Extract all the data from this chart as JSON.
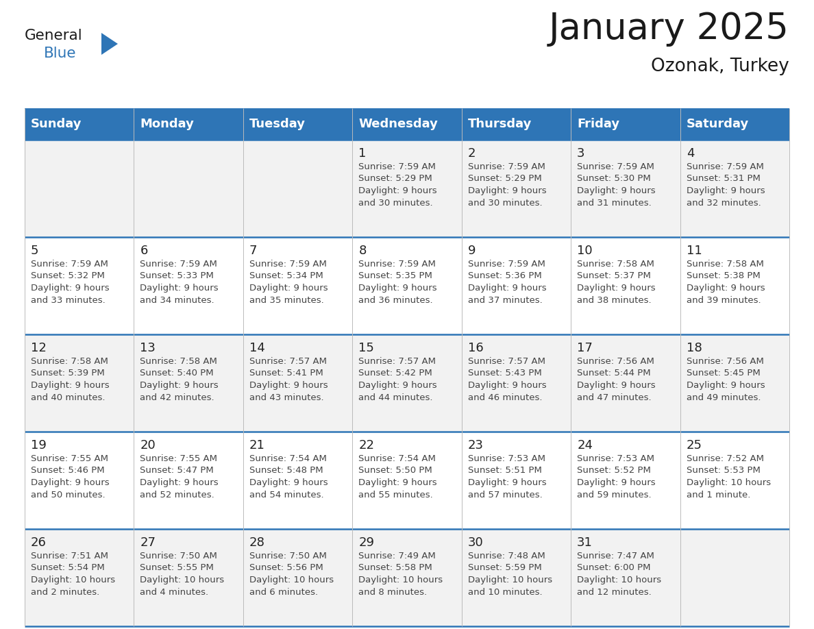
{
  "title": "January 2025",
  "subtitle": "Ozonak, Turkey",
  "days_of_week": [
    "Sunday",
    "Monday",
    "Tuesday",
    "Wednesday",
    "Thursday",
    "Friday",
    "Saturday"
  ],
  "header_bg": "#2E75B6",
  "header_text": "#FFFFFF",
  "row_bg_light": "#F2F2F2",
  "row_bg_white": "#FFFFFF",
  "cell_border_color": "#2E75B6",
  "thin_border_color": "#BBBBBB",
  "day_num_color": "#222222",
  "info_text_color": "#444444",
  "calendar_data": [
    [
      {
        "day": "",
        "sunrise": "",
        "sunset": "",
        "daylight": ""
      },
      {
        "day": "",
        "sunrise": "",
        "sunset": "",
        "daylight": ""
      },
      {
        "day": "",
        "sunrise": "",
        "sunset": "",
        "daylight": ""
      },
      {
        "day": "1",
        "sunrise": "7:59 AM",
        "sunset": "5:29 PM",
        "daylight": "9 hours\nand 30 minutes."
      },
      {
        "day": "2",
        "sunrise": "7:59 AM",
        "sunset": "5:29 PM",
        "daylight": "9 hours\nand 30 minutes."
      },
      {
        "day": "3",
        "sunrise": "7:59 AM",
        "sunset": "5:30 PM",
        "daylight": "9 hours\nand 31 minutes."
      },
      {
        "day": "4",
        "sunrise": "7:59 AM",
        "sunset": "5:31 PM",
        "daylight": "9 hours\nand 32 minutes."
      }
    ],
    [
      {
        "day": "5",
        "sunrise": "7:59 AM",
        "sunset": "5:32 PM",
        "daylight": "9 hours\nand 33 minutes."
      },
      {
        "day": "6",
        "sunrise": "7:59 AM",
        "sunset": "5:33 PM",
        "daylight": "9 hours\nand 34 minutes."
      },
      {
        "day": "7",
        "sunrise": "7:59 AM",
        "sunset": "5:34 PM",
        "daylight": "9 hours\nand 35 minutes."
      },
      {
        "day": "8",
        "sunrise": "7:59 AM",
        "sunset": "5:35 PM",
        "daylight": "9 hours\nand 36 minutes."
      },
      {
        "day": "9",
        "sunrise": "7:59 AM",
        "sunset": "5:36 PM",
        "daylight": "9 hours\nand 37 minutes."
      },
      {
        "day": "10",
        "sunrise": "7:58 AM",
        "sunset": "5:37 PM",
        "daylight": "9 hours\nand 38 minutes."
      },
      {
        "day": "11",
        "sunrise": "7:58 AM",
        "sunset": "5:38 PM",
        "daylight": "9 hours\nand 39 minutes."
      }
    ],
    [
      {
        "day": "12",
        "sunrise": "7:58 AM",
        "sunset": "5:39 PM",
        "daylight": "9 hours\nand 40 minutes."
      },
      {
        "day": "13",
        "sunrise": "7:58 AM",
        "sunset": "5:40 PM",
        "daylight": "9 hours\nand 42 minutes."
      },
      {
        "day": "14",
        "sunrise": "7:57 AM",
        "sunset": "5:41 PM",
        "daylight": "9 hours\nand 43 minutes."
      },
      {
        "day": "15",
        "sunrise": "7:57 AM",
        "sunset": "5:42 PM",
        "daylight": "9 hours\nand 44 minutes."
      },
      {
        "day": "16",
        "sunrise": "7:57 AM",
        "sunset": "5:43 PM",
        "daylight": "9 hours\nand 46 minutes."
      },
      {
        "day": "17",
        "sunrise": "7:56 AM",
        "sunset": "5:44 PM",
        "daylight": "9 hours\nand 47 minutes."
      },
      {
        "day": "18",
        "sunrise": "7:56 AM",
        "sunset": "5:45 PM",
        "daylight": "9 hours\nand 49 minutes."
      }
    ],
    [
      {
        "day": "19",
        "sunrise": "7:55 AM",
        "sunset": "5:46 PM",
        "daylight": "9 hours\nand 50 minutes."
      },
      {
        "day": "20",
        "sunrise": "7:55 AM",
        "sunset": "5:47 PM",
        "daylight": "9 hours\nand 52 minutes."
      },
      {
        "day": "21",
        "sunrise": "7:54 AM",
        "sunset": "5:48 PM",
        "daylight": "9 hours\nand 54 minutes."
      },
      {
        "day": "22",
        "sunrise": "7:54 AM",
        "sunset": "5:50 PM",
        "daylight": "9 hours\nand 55 minutes."
      },
      {
        "day": "23",
        "sunrise": "7:53 AM",
        "sunset": "5:51 PM",
        "daylight": "9 hours\nand 57 minutes."
      },
      {
        "day": "24",
        "sunrise": "7:53 AM",
        "sunset": "5:52 PM",
        "daylight": "9 hours\nand 59 minutes."
      },
      {
        "day": "25",
        "sunrise": "7:52 AM",
        "sunset": "5:53 PM",
        "daylight": "10 hours\nand 1 minute."
      }
    ],
    [
      {
        "day": "26",
        "sunrise": "7:51 AM",
        "sunset": "5:54 PM",
        "daylight": "10 hours\nand 2 minutes."
      },
      {
        "day": "27",
        "sunrise": "7:50 AM",
        "sunset": "5:55 PM",
        "daylight": "10 hours\nand 4 minutes."
      },
      {
        "day": "28",
        "sunrise": "7:50 AM",
        "sunset": "5:56 PM",
        "daylight": "10 hours\nand 6 minutes."
      },
      {
        "day": "29",
        "sunrise": "7:49 AM",
        "sunset": "5:58 PM",
        "daylight": "10 hours\nand 8 minutes."
      },
      {
        "day": "30",
        "sunrise": "7:48 AM",
        "sunset": "5:59 PM",
        "daylight": "10 hours\nand 10 minutes."
      },
      {
        "day": "31",
        "sunrise": "7:47 AM",
        "sunset": "6:00 PM",
        "daylight": "10 hours\nand 12 minutes."
      },
      {
        "day": "",
        "sunrise": "",
        "sunset": "",
        "daylight": ""
      }
    ]
  ],
  "logo_general_color": "#1a1a1a",
  "logo_blue_color": "#2E75B6",
  "title_color": "#1a1a1a",
  "subtitle_color": "#1a1a1a"
}
